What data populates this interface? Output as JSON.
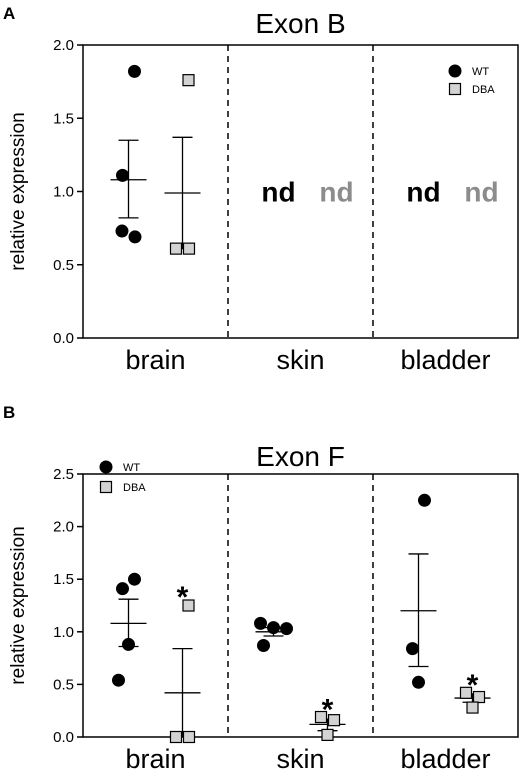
{
  "chart_data": [
    {
      "panel_label": "A",
      "type": "scatter",
      "title": "Exon B",
      "ylabel": "relative expression",
      "ylim": [
        0,
        2.0
      ],
      "yticks": [
        "0.0",
        "0.5",
        "1.0",
        "1.5",
        "2.0"
      ],
      "categories": [
        "brain",
        "skin",
        "bladder"
      ],
      "legend": {
        "position": "top-right",
        "entries": [
          "WT",
          "DBA"
        ]
      },
      "series": [
        {
          "name": "WT",
          "marker": "circle",
          "color": "#000000",
          "points": [
            [
              0,
              1.82
            ],
            [
              0,
              1.11
            ],
            [
              0,
              0.73
            ],
            [
              0,
              0.69
            ]
          ],
          "summary": [
            {
              "category": 0,
              "mean": 1.08,
              "upper": 1.35,
              "lower": 0.82
            }
          ]
        },
        {
          "name": "DBA",
          "marker": "square",
          "color": "#d3d3d3",
          "points": [
            [
              0,
              1.76
            ],
            [
              0,
              0.61
            ],
            [
              0,
              0.61
            ]
          ],
          "summary": [
            {
              "category": 0,
              "mean": 0.99,
              "upper": 1.37,
              "lower": 0.61
            }
          ]
        }
      ],
      "annotations": [
        {
          "category": 1,
          "wt_text": "nd",
          "dba_text": "nd"
        },
        {
          "category": 2,
          "wt_text": "nd",
          "dba_text": "nd"
        }
      ],
      "stars": []
    },
    {
      "panel_label": "B",
      "type": "scatter",
      "title": "Exon F",
      "ylabel": "relative expression",
      "ylim": [
        0,
        2.5
      ],
      "yticks": [
        "0.0",
        "0.5",
        "1.0",
        "1.5",
        "2.0",
        "2.5"
      ],
      "categories": [
        "brain",
        "skin",
        "bladder"
      ],
      "legend": {
        "position": "top-left",
        "entries": [
          "WT",
          "DBA"
        ]
      },
      "series": [
        {
          "name": "WT",
          "marker": "circle",
          "color": "#000000",
          "points": [
            [
              0,
              1.5
            ],
            [
              0,
              1.41
            ],
            [
              0,
              0.88
            ],
            [
              0,
              0.54
            ],
            [
              1,
              1.08
            ],
            [
              1,
              1.04
            ],
            [
              1,
              1.03
            ],
            [
              1,
              0.87
            ],
            [
              2,
              2.25
            ],
            [
              2,
              0.84
            ],
            [
              2,
              0.52
            ]
          ],
          "summary": [
            {
              "category": 0,
              "mean": 1.08,
              "upper": 1.31,
              "lower": 0.86
            },
            {
              "category": 1,
              "mean": 1.0,
              "upper": 1.04,
              "lower": 0.96
            },
            {
              "category": 2,
              "mean": 1.2,
              "upper": 1.74,
              "lower": 0.67
            }
          ]
        },
        {
          "name": "DBA",
          "marker": "square",
          "color": "#d3d3d3",
          "points": [
            [
              0,
              1.25
            ],
            [
              0,
              0.0
            ],
            [
              0,
              0.0
            ],
            [
              1,
              0.19
            ],
            [
              1,
              0.16
            ],
            [
              1,
              0.02
            ],
            [
              2,
              0.42
            ],
            [
              2,
              0.38
            ],
            [
              2,
              0.28
            ]
          ],
          "summary": [
            {
              "category": 0,
              "mean": 0.42,
              "upper": 0.84,
              "lower": 0.0
            },
            {
              "category": 1,
              "mean": 0.12,
              "upper": 0.17,
              "lower": 0.06
            },
            {
              "category": 2,
              "mean": 0.37,
              "upper": 0.41,
              "lower": 0.33
            }
          ]
        }
      ],
      "annotations": [],
      "stars": [
        {
          "category": 0,
          "series": "DBA",
          "y": 1.37,
          "text": "*"
        },
        {
          "category": 1,
          "series": "DBA",
          "y": 0.3,
          "text": "*"
        },
        {
          "category": 2,
          "series": "DBA",
          "y": 0.53,
          "text": "*"
        }
      ]
    }
  ]
}
